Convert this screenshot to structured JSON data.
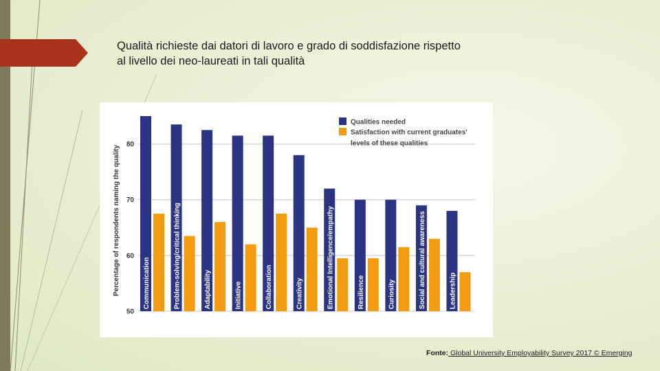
{
  "slide": {
    "title_line1": "Qualità richieste dai datori di lavoro e grado di soddisfazione rispetto",
    "title_line2": "al livello dei neo-laureati in tali qualità",
    "source_label": "Fonte:",
    "source_text": " Global University Employability Survey 2017 © Emerging"
  },
  "colors": {
    "accent_red": "#a8321e",
    "side_bar": "#7f7a5c",
    "qualities_needed": "#2b3383",
    "satisfaction": "#f39c12"
  },
  "chart_data": {
    "type": "bar",
    "title": "",
    "xlabel": "",
    "ylabel": "Percentage of respondents naming the quality",
    "ylim": [
      50,
      85
    ],
    "yticks": [
      50,
      60,
      70,
      80
    ],
    "grid": true,
    "legend_position": "top-right",
    "categories": [
      "Communication",
      "Problem-solving/critical thinking",
      "Adaptability",
      "Initiative",
      "Collaboration",
      "Creativity",
      "Emotional Intelligence/empathy",
      "Resilience",
      "Curiosity",
      "Social and cultural awareness",
      "Leadership"
    ],
    "series": [
      {
        "name": "Qualities needed",
        "values": [
          85,
          83.5,
          82.5,
          81.5,
          81.5,
          78,
          72,
          70,
          70,
          69,
          68
        ]
      },
      {
        "name": "Satisfaction with current graduates' levels of these qualities",
        "values": [
          67.5,
          63.5,
          66,
          62,
          67.5,
          65,
          59.5,
          59.5,
          61.5,
          63,
          57
        ]
      }
    ]
  }
}
